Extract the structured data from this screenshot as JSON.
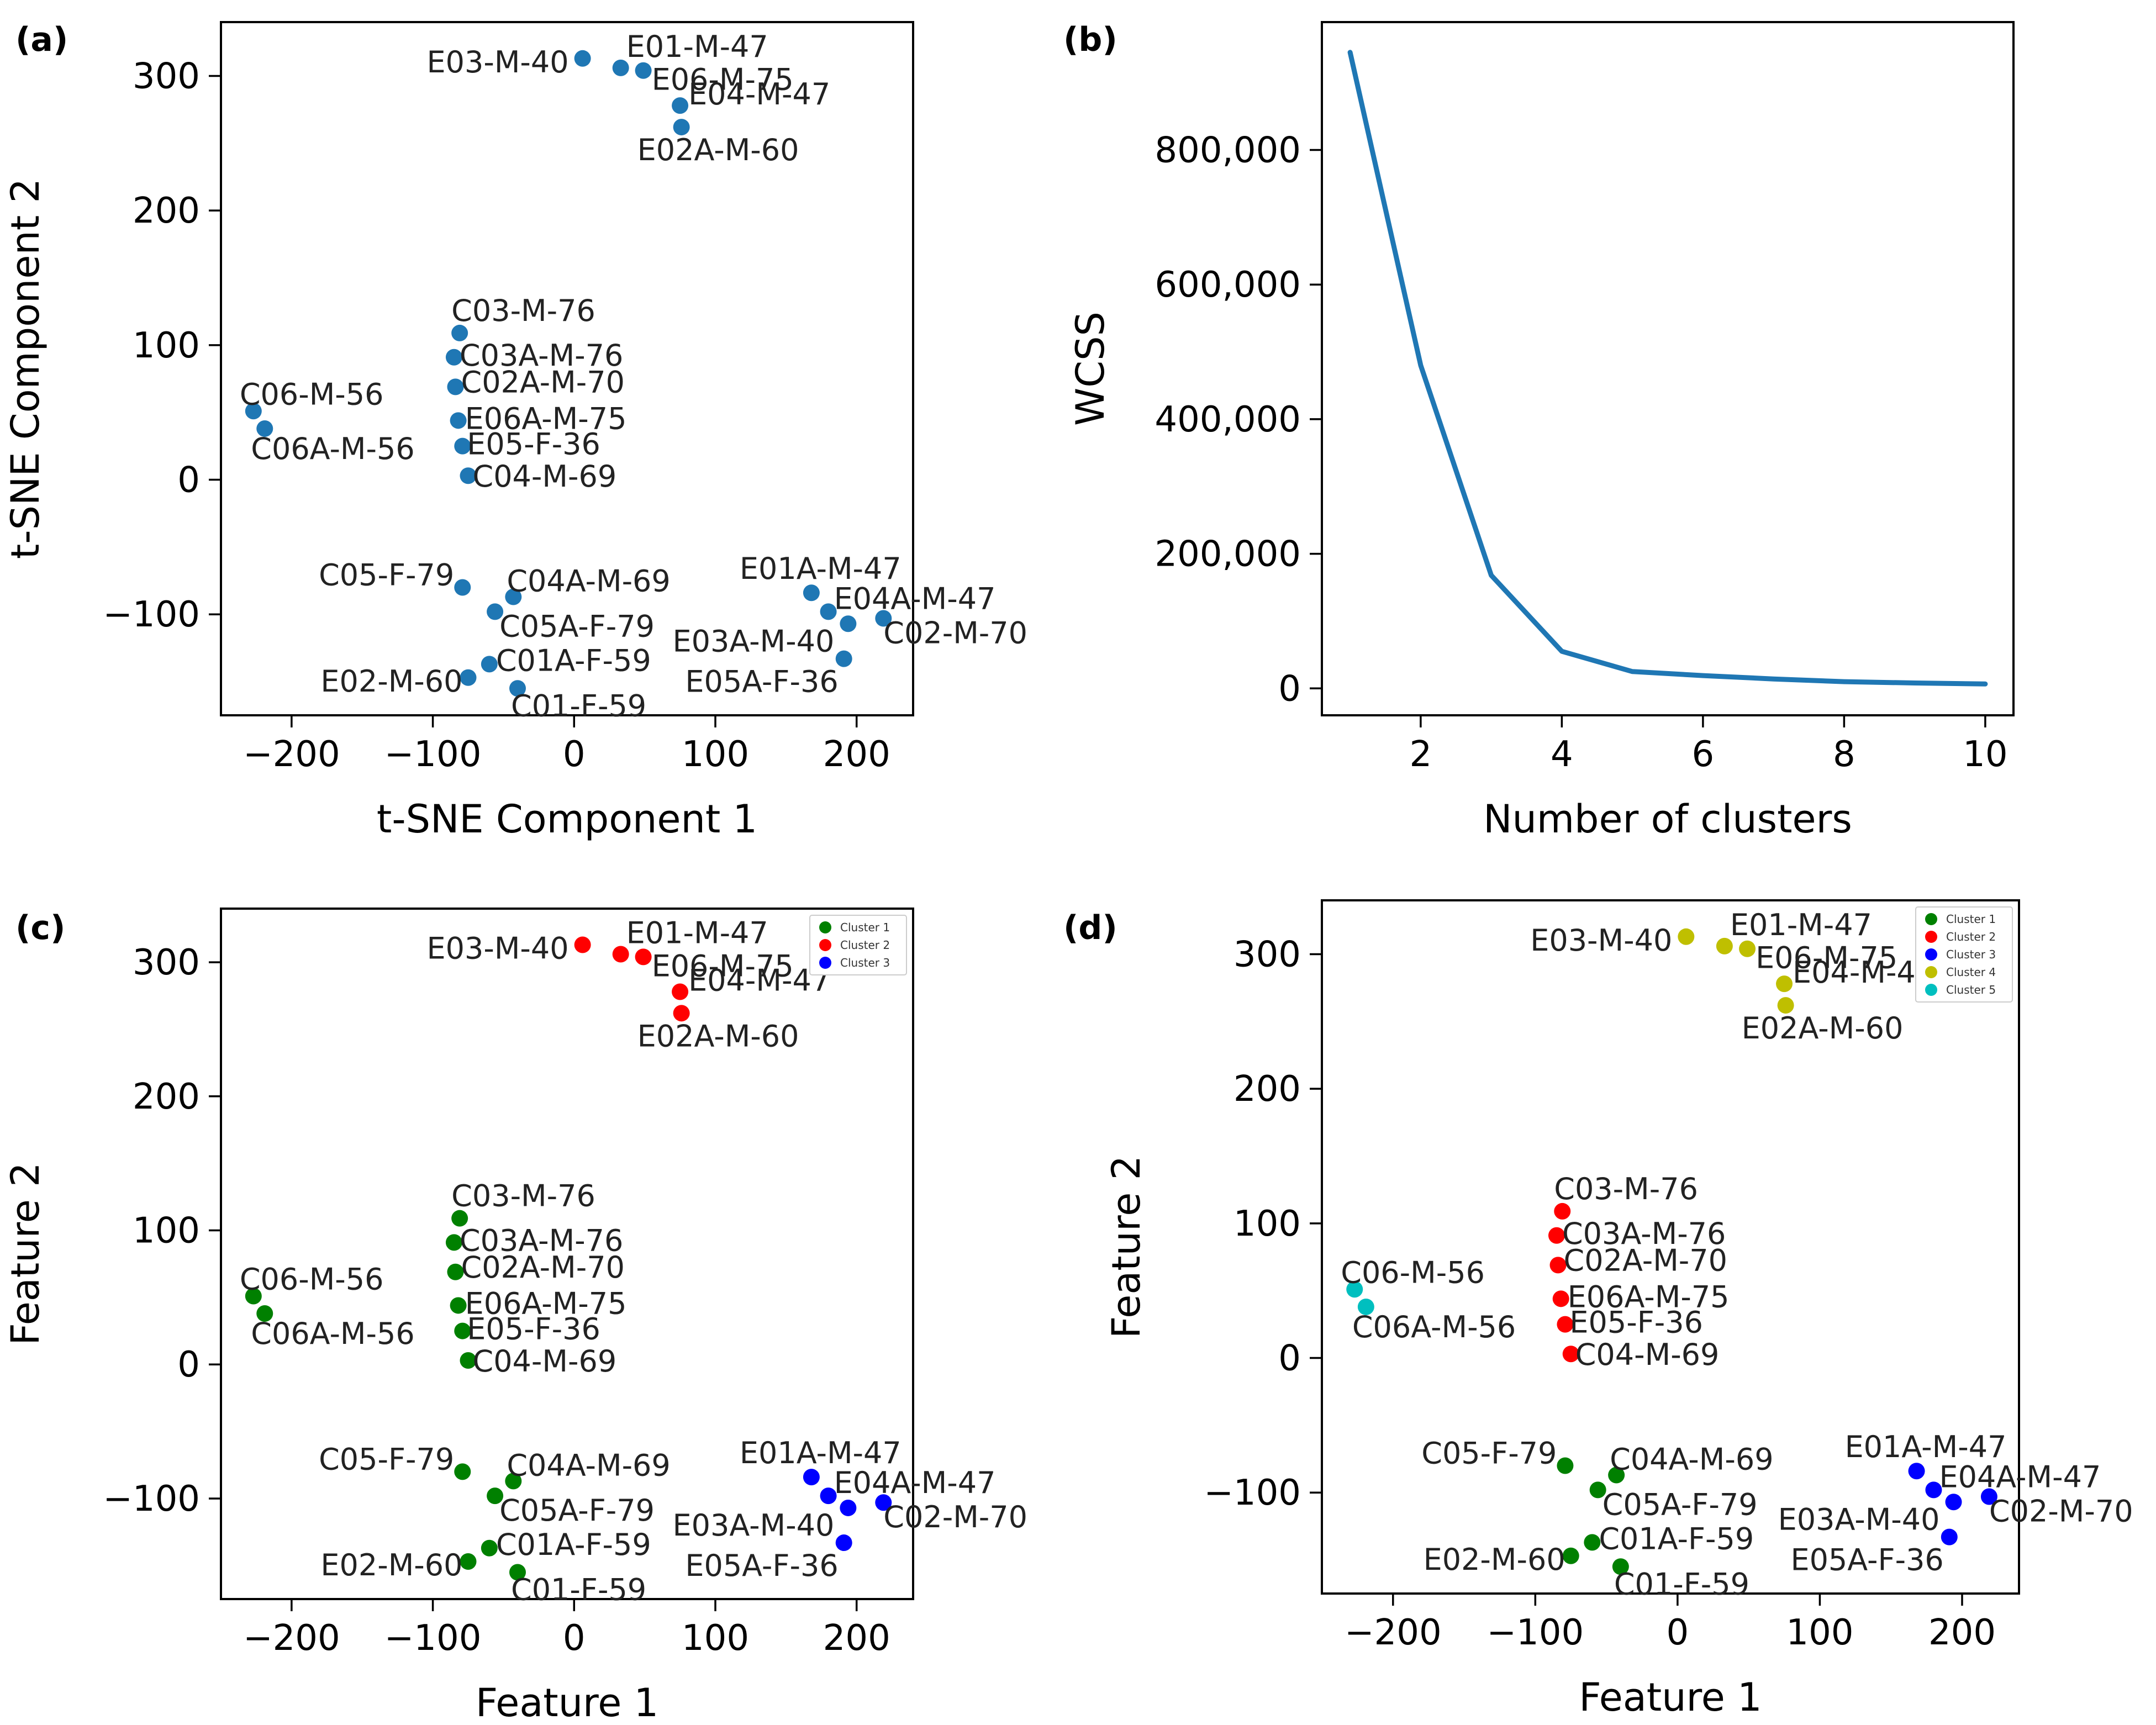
{
  "colors": {
    "scatter": "#1f77b4",
    "line": "#1f77b4",
    "cluster_1": "#008000",
    "cluster_2": "#ff0000",
    "cluster_3": "#0000ff",
    "cluster_4": "#bfbf00",
    "cluster_5": "#00bfbf"
  },
  "points": [
    {
      "name": "E03-M-40",
      "x": 6,
      "y": 313,
      "c3": 2,
      "c5": 4
    },
    {
      "name": "E01-M-47",
      "x": 33,
      "y": 306,
      "c3": 2,
      "c5": 4
    },
    {
      "name": "E06-M-75",
      "x": 49,
      "y": 304,
      "c3": 2,
      "c5": 4
    },
    {
      "name": "E04-M-47",
      "x": 75,
      "y": 278,
      "c3": 2,
      "c5": 4
    },
    {
      "name": "E02A-M-60",
      "x": 76,
      "y": 262,
      "c3": 2,
      "c5": 4
    },
    {
      "name": "C03-M-76",
      "x": -81,
      "y": 109,
      "c3": 1,
      "c5": 2
    },
    {
      "name": "C03A-M-76",
      "x": -85,
      "y": 91,
      "c3": 1,
      "c5": 2
    },
    {
      "name": "C02A-M-70",
      "x": -84,
      "y": 69,
      "c3": 1,
      "c5": 2
    },
    {
      "name": "E06A-M-75",
      "x": -82,
      "y": 44,
      "c3": 1,
      "c5": 2
    },
    {
      "name": "E05-F-36",
      "x": -79,
      "y": 25,
      "c3": 1,
      "c5": 2
    },
    {
      "name": "C04-M-69",
      "x": -75,
      "y": 3,
      "c3": 1,
      "c5": 2
    },
    {
      "name": "C06-M-56",
      "x": -227,
      "y": 51,
      "c3": 1,
      "c5": 5
    },
    {
      "name": "C06A-M-56",
      "x": -219,
      "y": 38,
      "c3": 1,
      "c5": 5
    },
    {
      "name": "C05-F-79",
      "x": -79,
      "y": -80,
      "c3": 1,
      "c5": 1
    },
    {
      "name": "C04A-M-69",
      "x": -43,
      "y": -87,
      "c3": 1,
      "c5": 1
    },
    {
      "name": "C05A-F-79",
      "x": -56,
      "y": -98,
      "c3": 1,
      "c5": 1
    },
    {
      "name": "C01A-F-59",
      "x": -60,
      "y": -137,
      "c3": 1,
      "c5": 1
    },
    {
      "name": "E02-M-60",
      "x": -75,
      "y": -147,
      "c3": 1,
      "c5": 1
    },
    {
      "name": "C01-F-59",
      "x": -40,
      "y": -155,
      "c3": 1,
      "c5": 1
    },
    {
      "name": "E01A-M-47",
      "x": 168,
      "y": -84,
      "c3": 3,
      "c5": 3
    },
    {
      "name": "E04A-M-47",
      "x": 180,
      "y": -98,
      "c3": 3,
      "c5": 3
    },
    {
      "name": "E03A-M-40",
      "x": 194,
      "y": -107,
      "c3": 3,
      "c5": 3
    },
    {
      "name": "C02-M-70",
      "x": 219,
      "y": -103,
      "c3": 3,
      "c5": 3
    },
    {
      "name": "E05A-F-36",
      "x": 191,
      "y": -133,
      "c3": 3,
      "c5": 3
    }
  ],
  "chart_data": [
    {
      "panel": "(a)",
      "type": "scatter",
      "title": "",
      "xlabel": "t-SNE Component 1",
      "ylabel": "t-SNE Component 2",
      "xlim": [
        -250,
        240
      ],
      "ylim": [
        -175,
        340
      ],
      "xticks": [
        -200,
        -100,
        0,
        100,
        200
      ],
      "yticks": [
        -100,
        0,
        100,
        200,
        300
      ],
      "xtick_labels": [
        "−200",
        "−100",
        "0",
        "100",
        "200"
      ],
      "ytick_labels": [
        "−100",
        "0",
        "100",
        "200",
        "300"
      ],
      "coloring": "single",
      "legend": null
    },
    {
      "panel": "(b)",
      "type": "line",
      "title": "",
      "xlabel": "Number of clusters",
      "ylabel": "WCSS",
      "xlim": [
        0.6,
        10.4
      ],
      "ylim": [
        -40000,
        990000
      ],
      "xticks": [
        2,
        4,
        6,
        8,
        10
      ],
      "yticks": [
        0,
        200000,
        400000,
        600000,
        800000
      ],
      "xtick_labels": [
        "2",
        "4",
        "6",
        "8",
        "10"
      ],
      "ytick_labels": [
        "0",
        "200,000",
        "400,000",
        "600,000",
        "800,000"
      ],
      "series": [
        {
          "name": "WCSS",
          "x": [
            1,
            2,
            3,
            4,
            5,
            6,
            7,
            8,
            9,
            10
          ],
          "y": [
            945000,
            480000,
            168000,
            55000,
            25000,
            19000,
            14000,
            10000,
            8000,
            6500
          ]
        }
      ]
    },
    {
      "panel": "(c)",
      "type": "scatter",
      "title": "",
      "xlabel": "Feature 1",
      "ylabel": "Feature 2",
      "xlim": [
        -250,
        240
      ],
      "ylim": [
        -175,
        340
      ],
      "xticks": [
        -200,
        -100,
        0,
        100,
        200
      ],
      "yticks": [
        -100,
        0,
        100,
        200,
        300
      ],
      "xtick_labels": [
        "−200",
        "−100",
        "0",
        "100",
        "200"
      ],
      "ytick_labels": [
        "−100",
        "0",
        "100",
        "200",
        "300"
      ],
      "coloring": "c3",
      "legend": {
        "placement": "top-right",
        "entries": [
          "Cluster 1",
          "Cluster 2",
          "Cluster 3"
        ]
      }
    },
    {
      "panel": "(d)",
      "type": "scatter",
      "title": "",
      "xlabel": "Feature 1",
      "ylabel": "Feature 2",
      "xlim": [
        -250,
        240
      ],
      "ylim": [
        -175,
        340
      ],
      "xticks": [
        -200,
        -100,
        0,
        100,
        200
      ],
      "yticks": [
        -100,
        0,
        100,
        200,
        300
      ],
      "xtick_labels": [
        "−200",
        "−100",
        "0",
        "100",
        "200"
      ],
      "ytick_labels": [
        "−100",
        "0",
        "100",
        "200",
        "300"
      ],
      "coloring": "c5",
      "legend": {
        "placement": "top-right",
        "entries": [
          "Cluster 1",
          "Cluster 2",
          "Cluster 3",
          "Cluster 4",
          "Cluster 5"
        ]
      }
    }
  ]
}
